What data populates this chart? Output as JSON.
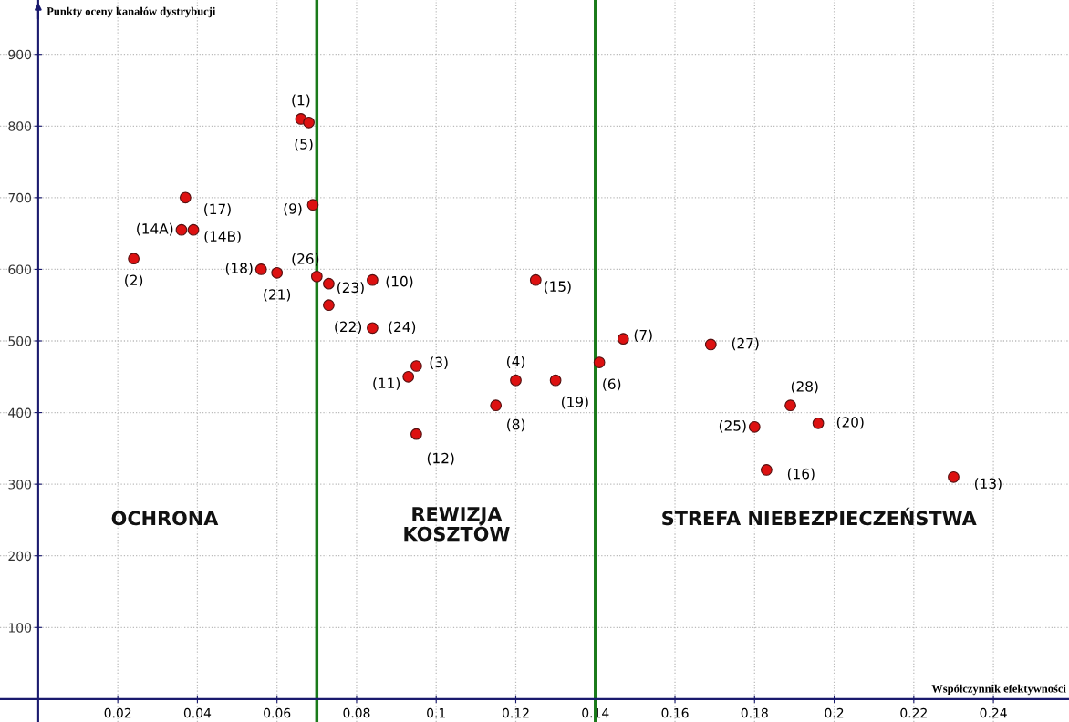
{
  "chart_data": {
    "type": "scatter",
    "xlabel": "Współczynnik efektywności",
    "ylabel": "Punkty oceny kanałów dystrybucji",
    "x": [
      0.066,
      0.068,
      0.069,
      0.037,
      0.036,
      0.039,
      0.024,
      0.056,
      0.06,
      0.07,
      0.073,
      0.073,
      0.084,
      0.084,
      0.095,
      0.093,
      0.095,
      0.125,
      0.12,
      0.13,
      0.115,
      0.141,
      0.147,
      0.169,
      0.189,
      0.18,
      0.196,
      0.183,
      0.23
    ],
    "values": [
      810,
      805,
      690,
      700,
      655,
      655,
      615,
      600,
      595,
      590,
      580,
      550,
      585,
      518,
      465,
      450,
      370,
      585,
      445,
      445,
      410,
      470,
      503,
      495,
      410,
      380,
      385,
      320,
      310
    ],
    "color": "#dd1111",
    "marker": "circle",
    "xlim": [
      -0.0096,
      0.259
    ],
    "ylim": [
      -32,
      976
    ],
    "xticks": [
      0.02,
      0.04,
      0.06,
      0.08,
      0.1,
      0.12,
      0.14,
      0.16,
      0.18,
      0.2,
      0.22,
      0.24
    ],
    "yticks": [
      100,
      200,
      300,
      400,
      500,
      600,
      700,
      800,
      900
    ],
    "grid": true,
    "ref_lines": [
      {
        "axis": "x",
        "value": 0.07,
        "color": "#1a7a1a"
      },
      {
        "axis": "x",
        "value": 0.14,
        "color": "#1a7a1a"
      },
      {
        "axis": "y",
        "value": 0,
        "color": "#1a1a6e"
      }
    ],
    "annotations": [
      "OCHRONA",
      "REWIZJA\nKOSZTÓW",
      "STREFA NIEBEZPIECZEŃSTWA",
      {
        "text": "(1)",
        "x": 0.066,
        "y": 810
      },
      {
        "text": "(5)",
        "x": 0.068,
        "y": 805
      },
      {
        "text": "(9)",
        "x": 0.069,
        "y": 690
      },
      {
        "text": "(17)",
        "x": 0.037,
        "y": 700
      },
      {
        "text": "(14A)",
        "x": 0.036,
        "y": 655
      },
      {
        "text": "(14B)",
        "x": 0.039,
        "y": 655
      },
      {
        "text": "(2)",
        "x": 0.024,
        "y": 615
      },
      {
        "text": "(18)",
        "x": 0.056,
        "y": 600
      },
      {
        "text": "(21)",
        "x": 0.06,
        "y": 595
      },
      {
        "text": "(26)",
        "x": 0.07,
        "y": 590
      },
      {
        "text": "(23)",
        "x": 0.073,
        "y": 580
      },
      {
        "text": "(22)",
        "x": 0.073,
        "y": 550
      },
      {
        "text": "(10)",
        "x": 0.084,
        "y": 585
      },
      {
        "text": "(24)",
        "x": 0.084,
        "y": 518
      },
      {
        "text": "(3)",
        "x": 0.095,
        "y": 465
      },
      {
        "text": "(11)",
        "x": 0.093,
        "y": 450
      },
      {
        "text": "(12)",
        "x": 0.095,
        "y": 370
      },
      {
        "text": "(15)",
        "x": 0.125,
        "y": 585
      },
      {
        "text": "(4)",
        "x": 0.12,
        "y": 445
      },
      {
        "text": "(19)",
        "x": 0.13,
        "y": 445
      },
      {
        "text": "(8)",
        "x": 0.115,
        "y": 410
      },
      {
        "text": "(6)",
        "x": 0.141,
        "y": 470
      },
      {
        "text": "(7)",
        "x": 0.147,
        "y": 503
      },
      {
        "text": "(27)",
        "x": 0.169,
        "y": 495
      },
      {
        "text": "(28)",
        "x": 0.189,
        "y": 410
      },
      {
        "text": "(25)",
        "x": 0.18,
        "y": 380
      },
      {
        "text": "(20)",
        "x": 0.196,
        "y": 385
      },
      {
        "text": "(16)",
        "x": 0.183,
        "y": 320
      },
      {
        "text": "(13)",
        "x": 0.23,
        "y": 310
      }
    ]
  }
}
